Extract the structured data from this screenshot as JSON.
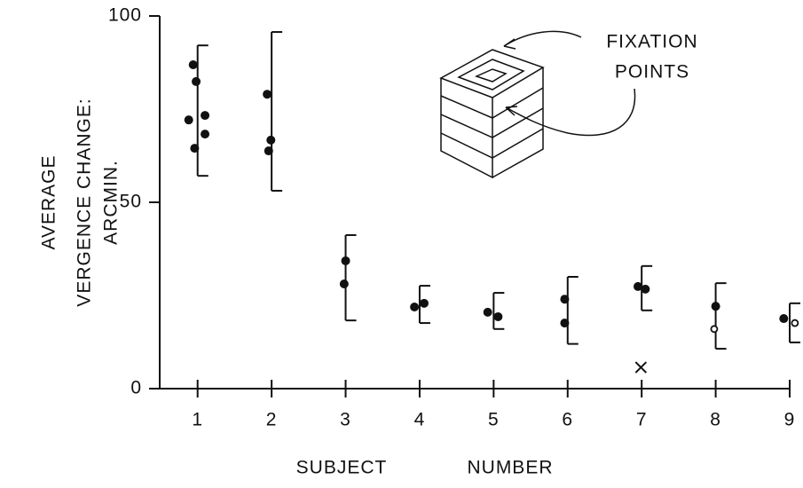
{
  "chart_data": {
    "type": "scatter",
    "y_label": [
      "AVERAGE",
      "VERGENCE CHANGE:",
      "ARCMIN."
    ],
    "x_label": [
      "SUBJECT",
      "NUMBER"
    ],
    "annotation": [
      "FIXATION",
      "POINTS"
    ],
    "xlim": [
      0.5,
      9
    ],
    "xticks": [
      1,
      2,
      3,
      4,
      5,
      6,
      7,
      8,
      9
    ],
    "ylim": [
      0,
      100
    ],
    "yticks": [
      0,
      50,
      100
    ],
    "color": "#111111",
    "series": [
      {
        "marker": "dot",
        "x": [
          0.94,
          0.98,
          0.88,
          1.1,
          1.1,
          0.96,
          1.94,
          1.99,
          1.96,
          3.0,
          2.98,
          3.93,
          4.06,
          4.92,
          5.06,
          5.96,
          5.96,
          6.95,
          7.05,
          8.0,
          8.92
        ],
        "values": [
          86.9,
          82.4,
          72.1,
          73.3,
          68.3,
          64.5,
          79,
          66.7,
          63.8,
          34.3,
          28.1,
          21.9,
          22.9,
          20.5,
          19.3,
          24,
          17.6,
          27.4,
          26.7,
          22.1,
          18.8
        ]
      },
      {
        "marker": "circle",
        "x": [
          7.98,
          9.07
        ],
        "values": [
          16,
          17.6
        ]
      },
      {
        "marker": "cross",
        "x": [
          6.99
        ],
        "values": [
          5.7
        ]
      }
    ],
    "ranges": {
      "x": [
        1,
        2,
        3,
        4,
        5,
        6,
        7,
        8,
        9
      ],
      "low": [
        57.1,
        53.1,
        18.3,
        17.6,
        16,
        12,
        21,
        10.7,
        12.4
      ],
      "high": [
        92.1,
        95.7,
        41.2,
        27.6,
        25.7,
        30,
        32.9,
        28.3,
        22.9
      ]
    }
  }
}
